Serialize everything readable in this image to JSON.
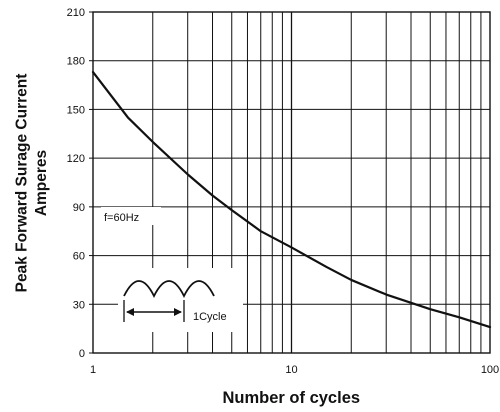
{
  "chart_data": {
    "type": "line",
    "title": "",
    "xlabel": "Number of cycles",
    "ylabel": [
      "Peak Forward Surage Current",
      "Amperes"
    ],
    "x_scale": "log",
    "xlim": [
      1,
      100
    ],
    "ylim": [
      0,
      210
    ],
    "x_ticks": [
      1,
      10,
      100
    ],
    "x_tick_labels": [
      "1",
      "10",
      "100"
    ],
    "y_ticks": [
      0,
      30,
      60,
      90,
      120,
      150,
      180,
      210
    ],
    "y_tick_labels": [
      "0",
      "30",
      "60",
      "90",
      "120",
      "150",
      "180",
      "210"
    ],
    "grid": true,
    "series": [
      {
        "x": [
          1,
          1.5,
          2,
          3,
          4,
          5,
          7,
          10,
          15,
          20,
          30,
          50,
          70,
          100
        ],
        "y": [
          173,
          145,
          130,
          110,
          97,
          88,
          75,
          65,
          53,
          45,
          36,
          27,
          22,
          16
        ]
      }
    ],
    "annotations": {
      "frequency": "f=60Hz",
      "cycle": "1Cycle"
    }
  },
  "colors": {
    "line": "#111111",
    "grid": "#111111",
    "background": "#ffffff"
  }
}
